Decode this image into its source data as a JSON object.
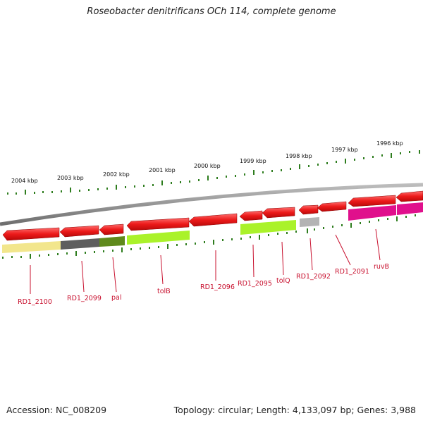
{
  "title": "Roseobacter denitrificans OCh 114, complete genome",
  "footer": {
    "accession": "Accession: NC_008209",
    "summary": "Topology: circular; Length: 4,133,097 bp; Genes: 3,988"
  },
  "ruler_labels": [
    "2004 kbp",
    "2003 kbp",
    "2002 kbp",
    "2001 kbp",
    "2000 kbp",
    "1999 kbp",
    "1998 kbp",
    "1997 kbp",
    "1996 kbp"
  ],
  "gene_labels": [
    "RD1_2100",
    "RD1_2099",
    "pal",
    "tolB",
    "RD1_2096",
    "RD1_2095",
    "tolQ",
    "RD1_2092",
    "RD1_2091",
    "ruvB"
  ],
  "colors": {
    "backbone": "#8c8c8c",
    "gene_arrow": "#e8141a",
    "ruler_tick": "#2e7d1e",
    "label_text": "#c8102e",
    "cog_yellow": "#f2e68c",
    "cog_dark_gray": "#5e5e5e",
    "cog_olive": "#5f8a1c",
    "cog_lime": "#aaf22a",
    "cog_light_gray": "#b4b4b4",
    "cog_magenta": "#e0108c"
  }
}
